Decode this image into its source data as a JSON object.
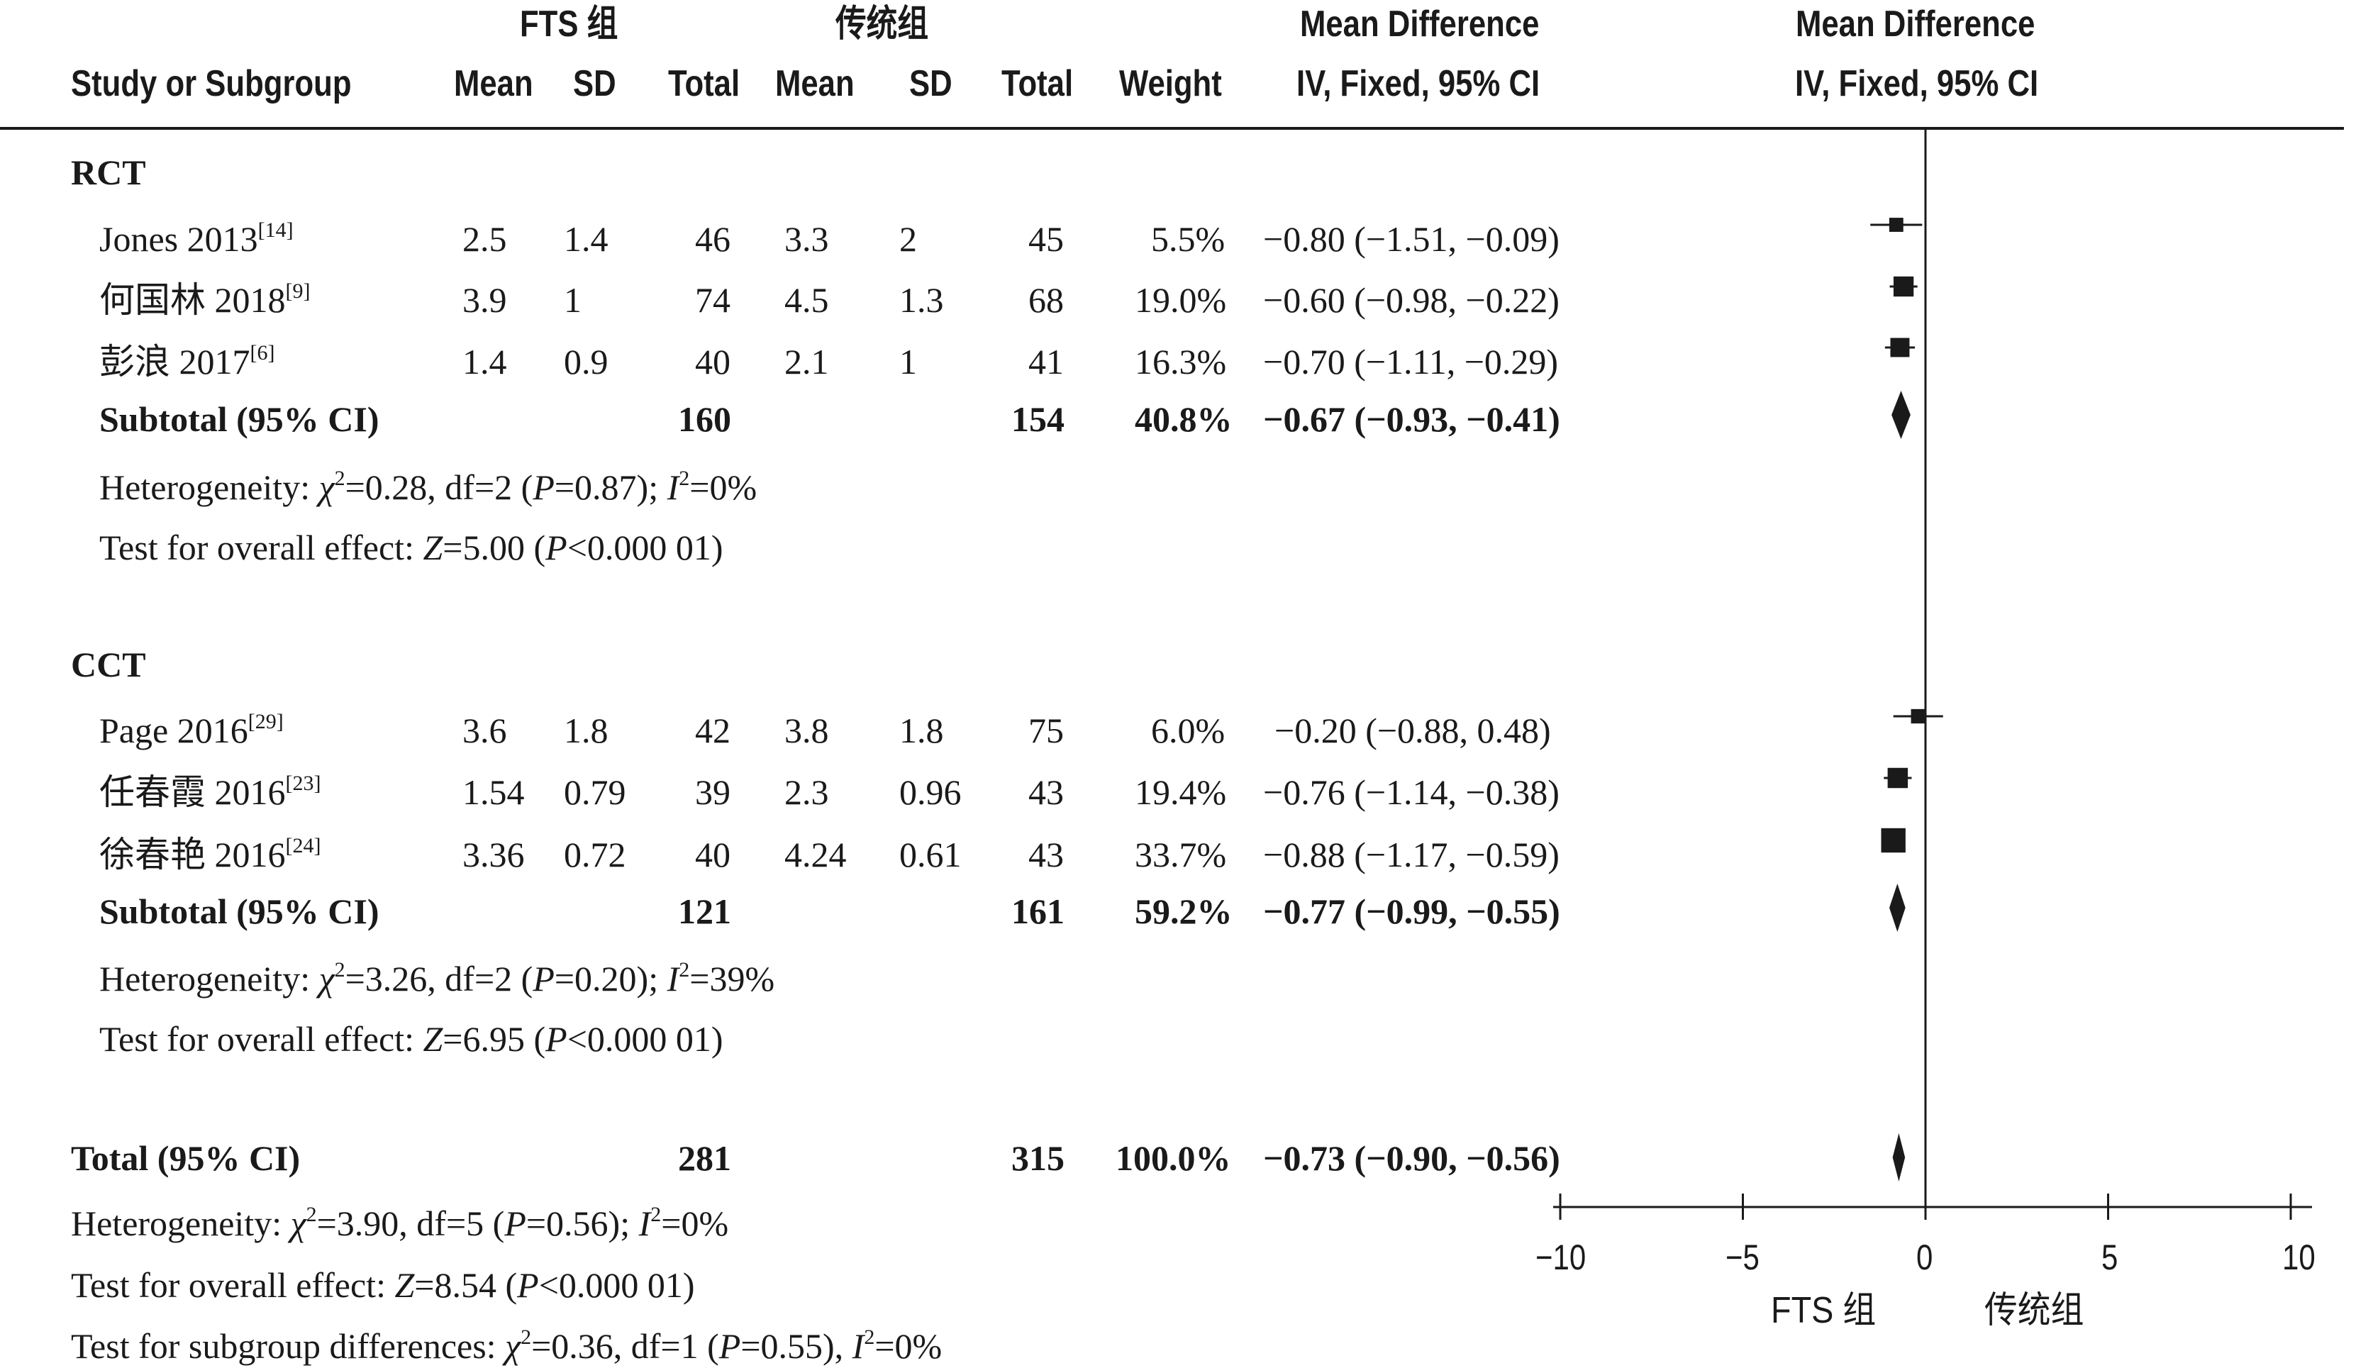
{
  "header": {
    "group1": "FTS 组",
    "group2": "传统组",
    "md_text": "Mean Difference",
    "md_text2": "Mean Difference",
    "col_study": "Study or Subgroup",
    "col_mean1": "Mean",
    "col_sd1": "SD",
    "col_total1": "Total",
    "col_mean2": "Mean",
    "col_sd2": "SD",
    "col_total2": "Total",
    "col_weight": "Weight",
    "col_ci_text": "IV, Fixed, 95% CI",
    "col_ci_plot": "IV, Fixed, 95% CI"
  },
  "subgroups": [
    {
      "name": "RCT",
      "studies": [
        {
          "label": "Jones 2013",
          "ref": "[14]",
          "mean1": "2.5",
          "sd1": "1.4",
          "n1": "46",
          "mean2": "3.3",
          "sd2": "2",
          "n2": "45",
          "weight": "5.5%",
          "ci": "−0.80 (−1.51, −0.09)"
        },
        {
          "label": "何国林 2018",
          "ref": "[9]",
          "mean1": "3.9",
          "sd1": "1",
          "n1": "74",
          "mean2": "4.5",
          "sd2": "1.3",
          "n2": "68",
          "weight": "19.0%",
          "ci": "−0.60 (−0.98, −0.22)"
        },
        {
          "label": "彭浪 2017",
          "ref": "[6]",
          "mean1": "1.4",
          "sd1": "0.9",
          "n1": "40",
          "mean2": "2.1",
          "sd2": "1",
          "n2": "41",
          "weight": "16.3%",
          "ci": "−0.70 (−1.11, −0.29)"
        }
      ],
      "subtotal": {
        "label": "Subtotal (95% CI)",
        "n1": "160",
        "n2": "154",
        "weight": "40.8%",
        "ci": "−0.67 (−0.93, −0.41)"
      },
      "het_text": "Heterogeneity: χ²=0.28, df=2 (P=0.87); I²=0%",
      "effect_text": "Test for overall effect: Z=5.00 (P<0.000 01)"
    },
    {
      "name": "CCT",
      "studies": [
        {
          "label": "Page 2016",
          "ref": "[29]",
          "mean1": "3.6",
          "sd1": "1.8",
          "n1": "42",
          "mean2": "3.8",
          "sd2": "1.8",
          "n2": "75",
          "weight": "6.0%",
          "ci": "−0.20 (−0.88, 0.48)"
        },
        {
          "label": "任春霞 2016",
          "ref": "[23]",
          "mean1": "1.54",
          "sd1": "0.79",
          "n1": "39",
          "mean2": "2.3",
          "sd2": "0.96",
          "n2": "43",
          "weight": "19.4%",
          "ci": "−0.76 (−1.14, −0.38)"
        },
        {
          "label": "徐春艳 2016",
          "ref": "[24]",
          "mean1": "3.36",
          "sd1": "0.72",
          "n1": "40",
          "mean2": "4.24",
          "sd2": "0.61",
          "n2": "43",
          "weight": "33.7%",
          "ci": "−0.88 (−1.17, −0.59)"
        }
      ],
      "subtotal": {
        "label": "Subtotal (95% CI)",
        "n1": "121",
        "n2": "161",
        "weight": "59.2%",
        "ci": "−0.77 (−0.99, −0.55)"
      },
      "het_text": "Heterogeneity: χ²=3.26, df=2 (P=0.20); I²=39%",
      "effect_text": "Test for overall effect: Z=6.95 (P<0.000 01)"
    }
  ],
  "total": {
    "label": "Total (95% CI)",
    "n1": "281",
    "n2": "315",
    "weight": "100.0%",
    "ci": "−0.73 (−0.90, −0.56)",
    "het_text": "Heterogeneity: χ²=3.90, df=5 (P=0.56); I²=0%",
    "effect_text": "Test for overall effect: Z=8.54 (P<0.000 01)",
    "subgroup_text": "Test for subgroup differences: χ²=0.36, df=1 (P=0.55), I²=0%"
  },
  "axis": {
    "ticks": [
      "−10",
      "−5",
      "0",
      "5",
      "10"
    ],
    "left_label": "FTS 组",
    "right_label": "传统组"
  },
  "chart_data": {
    "type": "forest",
    "xlim": [
      -10,
      10
    ],
    "xticks": [
      -10,
      -5,
      0,
      5,
      10
    ],
    "xlabel_left": "FTS 组",
    "xlabel_right": "传统组",
    "series": [
      {
        "name": "Jones 2013",
        "md": -0.8,
        "lo": -1.51,
        "hi": -0.09,
        "weight": 5.5
      },
      {
        "name": "何国林 2018",
        "md": -0.6,
        "lo": -0.98,
        "hi": -0.22,
        "weight": 19.0
      },
      {
        "name": "彭浪 2017",
        "md": -0.7,
        "lo": -1.11,
        "hi": -0.29,
        "weight": 16.3
      },
      {
        "name": "Subtotal (95% CI)",
        "md": -0.67,
        "lo": -0.93,
        "hi": -0.41,
        "weight": 40.8,
        "pooled": true
      },
      {
        "name": "Page 2016",
        "md": -0.2,
        "lo": -0.88,
        "hi": 0.48,
        "weight": 6.0
      },
      {
        "name": "任春霞 2016",
        "md": -0.76,
        "lo": -1.14,
        "hi": -0.38,
        "weight": 19.4
      },
      {
        "name": "徐春艳 2016",
        "md": -0.88,
        "lo": -1.17,
        "hi": -0.59,
        "weight": 33.7
      },
      {
        "name": "Subtotal (95% CI)",
        "md": -0.77,
        "lo": -0.99,
        "hi": -0.55,
        "weight": 59.2,
        "pooled": true
      },
      {
        "name": "Total (95% CI)",
        "md": -0.73,
        "lo": -0.9,
        "hi": -0.56,
        "weight": 100.0,
        "pooled": true
      }
    ]
  }
}
